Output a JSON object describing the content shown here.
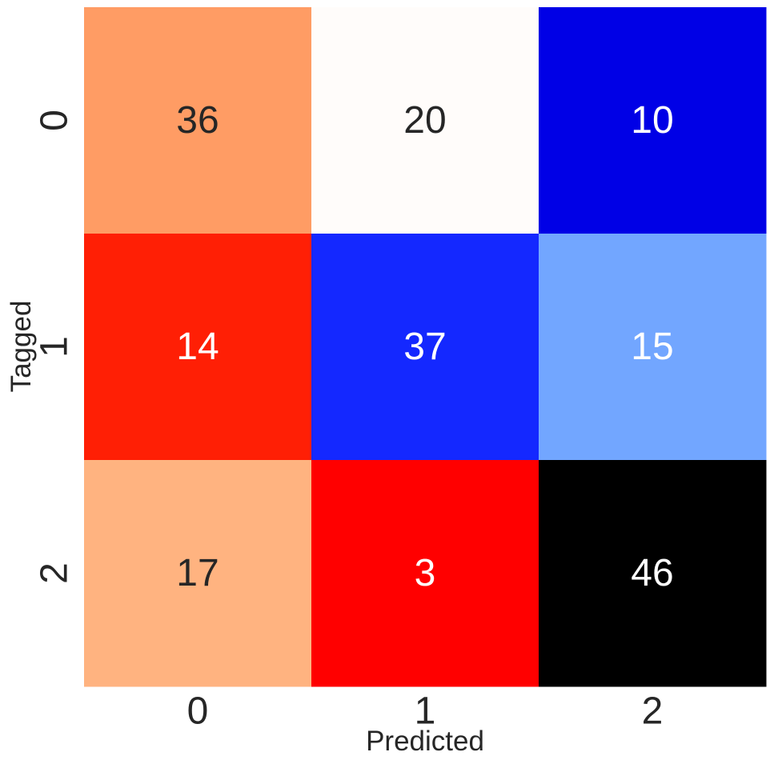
{
  "chart_data": {
    "type": "heatmap",
    "title": "",
    "xlabel": "Predicted",
    "ylabel": "Tagged",
    "x_tick_labels": [
      "0",
      "1",
      "2"
    ],
    "y_tick_labels": [
      "0",
      "1",
      "2"
    ],
    "values": [
      [
        36,
        20,
        10
      ],
      [
        14,
        37,
        15
      ],
      [
        17,
        3,
        46
      ]
    ],
    "cell_colors": [
      [
        "#ff9c64",
        "#fffcfa",
        "#0000e6"
      ],
      [
        "#ff1f05",
        "#1428ff",
        "#72a6ff"
      ],
      [
        "#ffb380",
        "#ff0000",
        "#000000"
      ]
    ],
    "text_colors": [
      [
        "#262626",
        "#262626",
        "#ffffff"
      ],
      [
        "#ffffff",
        "#ffffff",
        "#ffffff"
      ],
      [
        "#262626",
        "#ffffff",
        "#ffffff"
      ]
    ],
    "colorbar": false,
    "grid": false
  }
}
